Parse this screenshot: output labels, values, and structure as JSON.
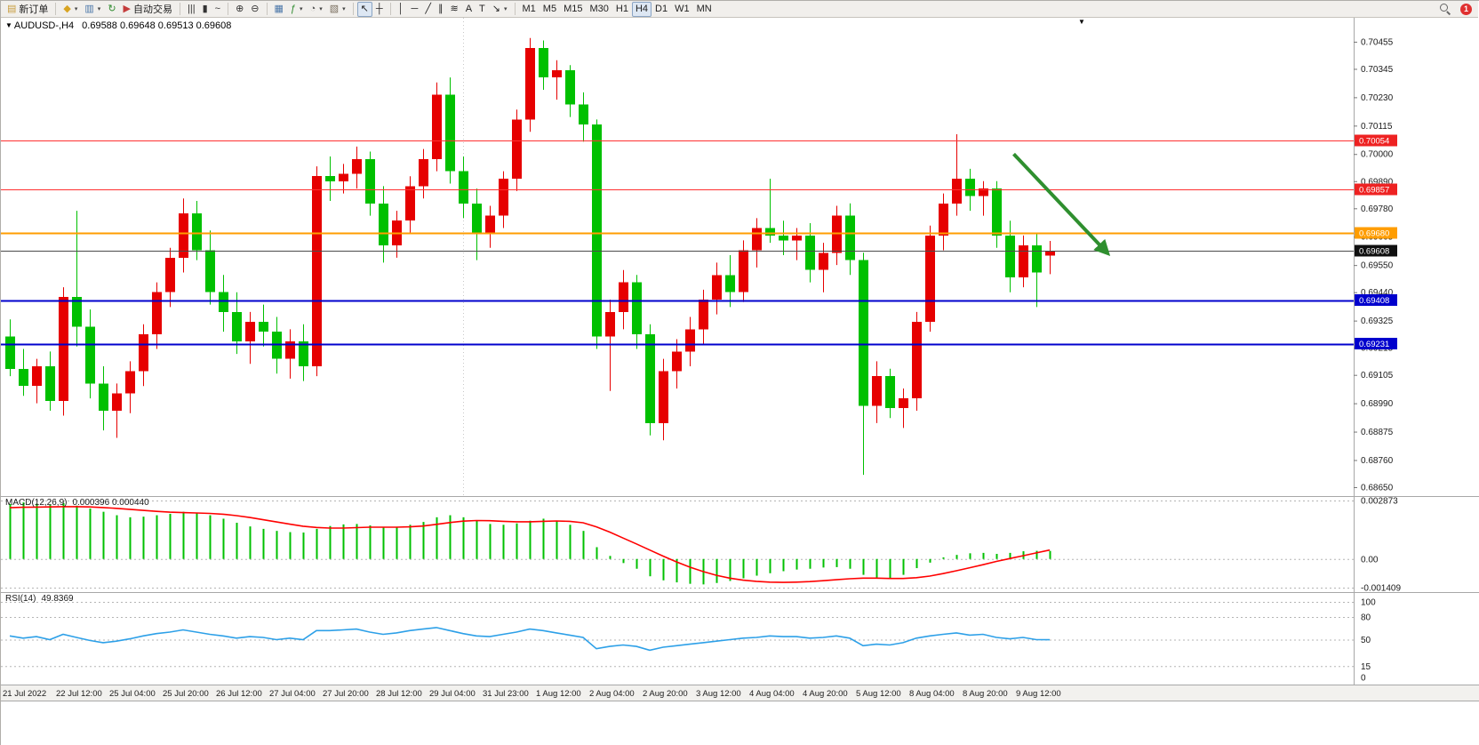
{
  "icons": {
    "symbol_caret": "▼",
    "shift_marker": "▼"
  },
  "toolbar": {
    "items": [
      {
        "kind": "button",
        "name": "new-order-button",
        "icon": "new-order-icon",
        "glyph": "▤",
        "color": "#c89c3c",
        "label": "新订单"
      },
      {
        "kind": "sep"
      },
      {
        "kind": "button",
        "name": "profiles-button",
        "icon": "profiles-icon",
        "glyph": "◆",
        "color": "#d8a422",
        "caret": true
      },
      {
        "kind": "button",
        "name": "charts-window-button",
        "icon": "chart-window-icon",
        "glyph": "▥",
        "color": "#4a76a8",
        "caret": true
      },
      {
        "kind": "button",
        "name": "refresh-button",
        "icon": "refresh-icon",
        "glyph": "↻",
        "color": "#2e8b2e"
      },
      {
        "kind": "button",
        "name": "autotrading-button",
        "icon": "autotrading-icon",
        "glyph": "▶",
        "color": "#c43c3c",
        "label": "自动交易"
      },
      {
        "kind": "sep"
      },
      {
        "kind": "button",
        "name": "bars-chart-button",
        "icon": "ohlc-bars-icon",
        "glyph": "|||",
        "color": "#333"
      },
      {
        "kind": "button",
        "name": "candles-chart-button",
        "icon": "candlestick-icon",
        "glyph": "▮",
        "color": "#333"
      },
      {
        "kind": "button",
        "name": "line-chart-button",
        "icon": "line-chart-icon",
        "glyph": "~",
        "color": "#333"
      },
      {
        "kind": "sep"
      },
      {
        "kind": "button",
        "name": "zoom-in-button",
        "icon": "zoom-in-icon",
        "glyph": "⊕",
        "color": "#333"
      },
      {
        "kind": "button",
        "name": "zoom-out-button",
        "icon": "zoom-out-icon",
        "glyph": "⊖",
        "color": "#333"
      },
      {
        "kind": "sep"
      },
      {
        "kind": "button",
        "name": "tile-windows-button",
        "icon": "tile-windows-icon",
        "glyph": "▦",
        "color": "#4a76a8"
      },
      {
        "kind": "button",
        "name": "indicators-button",
        "icon": "indicators-icon",
        "glyph": "ƒ",
        "color": "#2e8b2e",
        "caret": true
      },
      {
        "kind": "button",
        "name": "periods-button",
        "icon": "clock-icon",
        "glyph": "◔",
        "color": "#555",
        "caret": true
      },
      {
        "kind": "button",
        "name": "templates-button",
        "icon": "template-icon",
        "glyph": "▧",
        "color": "#7a6f5f",
        "caret": true
      },
      {
        "kind": "sep"
      },
      {
        "kind": "button",
        "name": "cursor-button",
        "icon": "cursor-icon",
        "glyph": "↖",
        "color": "#222",
        "active": true
      },
      {
        "kind": "button",
        "name": "crosshair-button",
        "icon": "crosshair-icon",
        "glyph": "┼",
        "color": "#222"
      },
      {
        "kind": "sep"
      },
      {
        "kind": "button",
        "name": "vertical-line-button",
        "icon": "vertical-line-icon",
        "glyph": "│",
        "color": "#222"
      },
      {
        "kind": "button",
        "name": "horizontal-line-button",
        "icon": "horizontal-line-icon",
        "glyph": "─",
        "color": "#222"
      },
      {
        "kind": "button",
        "name": "trendline-button",
        "icon": "trendline-icon",
        "glyph": "╱",
        "color": "#222"
      },
      {
        "kind": "button",
        "name": "channel-button",
        "icon": "channel-icon",
        "glyph": "∥",
        "color": "#222"
      },
      {
        "kind": "button",
        "name": "fibonacci-button",
        "icon": "fibonacci-icon",
        "glyph": "≋",
        "color": "#222"
      },
      {
        "kind": "button",
        "name": "text-button",
        "icon": "text-icon",
        "glyph": "A",
        "color": "#222"
      },
      {
        "kind": "button",
        "name": "text-label-button",
        "icon": "text-label-icon",
        "glyph": "T",
        "color": "#222"
      },
      {
        "kind": "button",
        "name": "arrows-button",
        "icon": "arrow-shapes-icon",
        "glyph": "↘",
        "color": "#222",
        "caret": true
      },
      {
        "kind": "sep"
      },
      {
        "kind": "tf",
        "name": "timeframe-m1-button",
        "label": "M1"
      },
      {
        "kind": "tf",
        "name": "timeframe-m5-button",
        "label": "M5"
      },
      {
        "kind": "tf",
        "name": "timeframe-m15-button",
        "label": "M15"
      },
      {
        "kind": "tf",
        "name": "timeframe-m30-button",
        "label": "M30"
      },
      {
        "kind": "tf",
        "name": "timeframe-h1-button",
        "label": "H1"
      },
      {
        "kind": "tf",
        "name": "timeframe-h4-button",
        "label": "H4",
        "active": true
      },
      {
        "kind": "tf",
        "name": "timeframe-d1-button",
        "label": "D1"
      },
      {
        "kind": "tf",
        "name": "timeframe-w1-button",
        "label": "W1"
      },
      {
        "kind": "tf",
        "name": "timeframe-mn-button",
        "label": "MN"
      },
      {
        "kind": "spacer"
      },
      {
        "kind": "search",
        "name": "search-button"
      },
      {
        "kind": "badge",
        "name": "notifications-badge",
        "label": "1"
      }
    ]
  },
  "chart_header": {
    "symbol_period": "AUDUSD-,H4",
    "ohlc": "0.69588 0.69648 0.69513 0.69608"
  },
  "chart_data": {
    "type": "candlestick",
    "symbol": "AUDUSD-",
    "period": "H4",
    "colors": {
      "up": "#e60000",
      "down": "#00c000"
    },
    "price_axis": {
      "range": [
        0.68614,
        0.70552
      ],
      "ticks": [
        "0.70455",
        "0.70345",
        "0.70230",
        "0.70115",
        "0.70000",
        "0.69890",
        "0.69780",
        "0.69665",
        "0.69550",
        "0.69440",
        "0.69325",
        "0.69215",
        "0.69105",
        "0.68990",
        "0.68875",
        "0.68760",
        "0.68650"
      ]
    },
    "time_labels": [
      "21 Jul 2022",
      "22 Jul 12:00",
      "25 Jul 04:00",
      "25 Jul 20:00",
      "26 Jul 12:00",
      "27 Jul 04:00",
      "27 Jul 20:00",
      "28 Jul 12:00",
      "29 Jul 04:00",
      "31 Jul 23:00",
      "1 Aug 12:00",
      "2 Aug 04:00",
      "2 Aug 20:00",
      "3 Aug 12:00",
      "4 Aug 04:00",
      "4 Aug 20:00",
      "5 Aug 12:00",
      "8 Aug 04:00",
      "8 Aug 20:00",
      "9 Aug 12:00"
    ],
    "bars_per_label": 4,
    "separator_bar_index": 34,
    "candles": [
      [
        0.6926,
        0.6933,
        0.691,
        0.6913
      ],
      [
        0.6913,
        0.6921,
        0.6902,
        0.6906
      ],
      [
        0.6906,
        0.6917,
        0.6899,
        0.6914
      ],
      [
        0.6914,
        0.692,
        0.6896,
        0.69
      ],
      [
        0.69,
        0.6946,
        0.6894,
        0.6942
      ],
      [
        0.6942,
        0.6977,
        0.6922,
        0.693
      ],
      [
        0.693,
        0.6937,
        0.6901,
        0.6907
      ],
      [
        0.6907,
        0.6914,
        0.6888,
        0.6896
      ],
      [
        0.6896,
        0.6907,
        0.6885,
        0.6903
      ],
      [
        0.6903,
        0.6916,
        0.6895,
        0.6912
      ],
      [
        0.6912,
        0.6931,
        0.6906,
        0.6927
      ],
      [
        0.6927,
        0.6948,
        0.6921,
        0.6944
      ],
      [
        0.6944,
        0.6962,
        0.6938,
        0.6958
      ],
      [
        0.6958,
        0.6982,
        0.6952,
        0.6976
      ],
      [
        0.6976,
        0.6981,
        0.6957,
        0.6961
      ],
      [
        0.6961,
        0.6969,
        0.6939,
        0.6944
      ],
      [
        0.6944,
        0.6951,
        0.6928,
        0.6936
      ],
      [
        0.6936,
        0.6944,
        0.6919,
        0.6924
      ],
      [
        0.6924,
        0.6936,
        0.6915,
        0.6932
      ],
      [
        0.6932,
        0.6939,
        0.6922,
        0.6928
      ],
      [
        0.6928,
        0.6934,
        0.6911,
        0.6917
      ],
      [
        0.6917,
        0.6929,
        0.6909,
        0.6924
      ],
      [
        0.6924,
        0.6931,
        0.6908,
        0.6914
      ],
      [
        0.6914,
        0.6995,
        0.691,
        0.6991
      ],
      [
        0.6991,
        0.6999,
        0.6981,
        0.6989
      ],
      [
        0.6989,
        0.6996,
        0.6984,
        0.6992
      ],
      [
        0.6992,
        0.7003,
        0.6986,
        0.6998
      ],
      [
        0.6998,
        0.7001,
        0.6975,
        0.698
      ],
      [
        0.698,
        0.6987,
        0.6956,
        0.6963
      ],
      [
        0.6963,
        0.6977,
        0.6958,
        0.6973
      ],
      [
        0.6973,
        0.6991,
        0.6968,
        0.6987
      ],
      [
        0.6987,
        0.7002,
        0.6982,
        0.6998
      ],
      [
        0.6998,
        0.7029,
        0.6993,
        0.7024
      ],
      [
        0.7024,
        0.7031,
        0.6988,
        0.6993
      ],
      [
        0.6993,
        0.6999,
        0.6974,
        0.698
      ],
      [
        0.698,
        0.6986,
        0.6957,
        0.6968
      ],
      [
        0.6968,
        0.6979,
        0.6962,
        0.6975
      ],
      [
        0.6975,
        0.6993,
        0.697,
        0.699
      ],
      [
        0.699,
        0.7018,
        0.6985,
        0.7014
      ],
      [
        0.7014,
        0.7047,
        0.7009,
        0.7043
      ],
      [
        0.7043,
        0.7046,
        0.7026,
        0.7031
      ],
      [
        0.7031,
        0.7038,
        0.7022,
        0.7034
      ],
      [
        0.7034,
        0.7036,
        0.7015,
        0.702
      ],
      [
        0.702,
        0.7025,
        0.7005,
        0.7012
      ],
      [
        0.7012,
        0.7014,
        0.6921,
        0.6926
      ],
      [
        0.6926,
        0.6941,
        0.6904,
        0.6936
      ],
      [
        0.6936,
        0.6953,
        0.6929,
        0.6948
      ],
      [
        0.6948,
        0.6951,
        0.6921,
        0.6927
      ],
      [
        0.6927,
        0.6931,
        0.6886,
        0.6891
      ],
      [
        0.6891,
        0.6917,
        0.6884,
        0.6912
      ],
      [
        0.6912,
        0.6925,
        0.6905,
        0.692
      ],
      [
        0.692,
        0.6934,
        0.6914,
        0.6929
      ],
      [
        0.6929,
        0.6945,
        0.6923,
        0.6941
      ],
      [
        0.6941,
        0.6956,
        0.6935,
        0.6951
      ],
      [
        0.6951,
        0.6959,
        0.6938,
        0.6944
      ],
      [
        0.6944,
        0.6965,
        0.694,
        0.6961
      ],
      [
        0.6961,
        0.6974,
        0.6954,
        0.697
      ],
      [
        0.697,
        0.699,
        0.6964,
        0.6967
      ],
      [
        0.6967,
        0.6973,
        0.6959,
        0.6965
      ],
      [
        0.6965,
        0.697,
        0.6957,
        0.6967
      ],
      [
        0.6967,
        0.6972,
        0.6948,
        0.6953
      ],
      [
        0.6953,
        0.6964,
        0.6944,
        0.696
      ],
      [
        0.696,
        0.6979,
        0.6955,
        0.6975
      ],
      [
        0.6975,
        0.698,
        0.6951,
        0.6957
      ],
      [
        0.6957,
        0.696,
        0.687,
        0.6898
      ],
      [
        0.6898,
        0.6916,
        0.6891,
        0.691
      ],
      [
        0.691,
        0.6913,
        0.6893,
        0.6897
      ],
      [
        0.6897,
        0.6905,
        0.6889,
        0.6901
      ],
      [
        0.6901,
        0.6936,
        0.6896,
        0.6932
      ],
      [
        0.6932,
        0.6971,
        0.6928,
        0.6967
      ],
      [
        0.6967,
        0.6984,
        0.6961,
        0.698
      ],
      [
        0.698,
        0.7008,
        0.6975,
        0.699
      ],
      [
        0.699,
        0.6994,
        0.6977,
        0.6983
      ],
      [
        0.6983,
        0.6989,
        0.6975,
        0.6986
      ],
      [
        0.6986,
        0.6989,
        0.6962,
        0.6967
      ],
      [
        0.6967,
        0.6973,
        0.6944,
        0.695
      ],
      [
        0.695,
        0.6967,
        0.6946,
        0.6963
      ],
      [
        0.6963,
        0.6968,
        0.6938,
        0.6952
      ],
      [
        0.69588,
        0.69648,
        0.69513,
        0.69608
      ]
    ],
    "horizontal_lines": [
      {
        "price": 0.70054,
        "label": "0.70054",
        "color": "#ff3030",
        "label_bg": "#ee2222",
        "width": 1
      },
      {
        "price": 0.69857,
        "label": "0.69857",
        "color": "#ff3030",
        "label_bg": "#ee2222",
        "width": 1
      },
      {
        "price": 0.6968,
        "label": "0.69680",
        "color": "#ff9d00",
        "label_bg": "#ff9d00",
        "width": 2
      },
      {
        "price": 0.69608,
        "label": "0.69608",
        "color": "#4a4a4a",
        "label_bg": "#101010",
        "width": 1,
        "role": "current-price"
      },
      {
        "price": 0.69408,
        "label": "0.69408",
        "color": "#0000cd",
        "label_bg": "#0000cd",
        "width": 2
      },
      {
        "price": 0.69231,
        "label": "0.69231",
        "color": "#0000cd",
        "label_bg": "#0000cd",
        "width": 2
      }
    ],
    "trend_arrow": {
      "from_bar": 75.3,
      "from_price": 0.7,
      "to_bar": 82.3,
      "to_price": 0.696,
      "color": "#2f8f2f",
      "width": 4
    },
    "macd": {
      "label": "MACD(12,26,9)",
      "values": "0.000396 0.000440",
      "range": [
        -0.001409,
        0.002873
      ],
      "scale_labels": [
        {
          "text": "0.002873",
          "value": 0.002873
        },
        {
          "text": "0.00",
          "value": 0
        },
        {
          "text": "-0.001409",
          "value": -0.001409
        }
      ],
      "colors": {
        "histogram": "#00c000",
        "signal": "#ff0000"
      },
      "histogram": [
        0.0027,
        0.00278,
        0.00272,
        0.00268,
        0.00275,
        0.00262,
        0.00248,
        0.00232,
        0.00215,
        0.00205,
        0.00208,
        0.00215,
        0.00222,
        0.00232,
        0.00228,
        0.00215,
        0.00198,
        0.00178,
        0.0016,
        0.00148,
        0.00138,
        0.00132,
        0.0013,
        0.00148,
        0.00162,
        0.0017,
        0.00172,
        0.00165,
        0.00155,
        0.00158,
        0.00168,
        0.00182,
        0.00205,
        0.00215,
        0.00205,
        0.00188,
        0.00172,
        0.00168,
        0.00175,
        0.00188,
        0.00198,
        0.00188,
        0.00168,
        0.00138,
        0.00058,
        0.00015,
        -0.0002,
        -0.00048,
        -0.00085,
        -0.00105,
        -0.00115,
        -0.00122,
        -0.00125,
        -0.00118,
        -0.00108,
        -0.00095,
        -0.00082,
        -0.0007,
        -0.0006,
        -0.00052,
        -0.00048,
        -0.00042,
        -0.0004,
        -0.00048,
        -0.00078,
        -0.00092,
        -0.00095,
        -0.00078,
        -0.00045,
        -0.00018,
        8e-05,
        0.0002,
        0.00028,
        0.0003,
        0.00025,
        0.0003,
        0.00038,
        0.0004,
        0.000396
      ],
      "signal": [
        0.00252,
        0.00254,
        0.00255,
        0.00256,
        0.00257,
        0.00257,
        0.00256,
        0.00253,
        0.00249,
        0.00244,
        0.00239,
        0.00234,
        0.0023,
        0.00228,
        0.00226,
        0.00224,
        0.0022,
        0.00213,
        0.00204,
        0.00193,
        0.00182,
        0.00171,
        0.00161,
        0.00155,
        0.00152,
        0.00152,
        0.00154,
        0.00156,
        0.00156,
        0.00156,
        0.00158,
        0.00162,
        0.0017,
        0.00179,
        0.00186,
        0.00189,
        0.00188,
        0.00185,
        0.00183,
        0.00183,
        0.00185,
        0.00187,
        0.00185,
        0.00178,
        0.00158,
        0.00132,
        0.00103,
        0.00074,
        0.00044,
        0.00014,
        -0.00014,
        -0.0004,
        -0.00062,
        -0.0008,
        -0.00094,
        -0.00104,
        -0.0011,
        -0.00114,
        -0.00115,
        -0.00114,
        -0.00111,
        -0.00107,
        -0.00102,
        -0.00097,
        -0.00094,
        -0.00094,
        -0.00096,
        -0.00096,
        -0.00092,
        -0.00084,
        -0.00072,
        -0.00058,
        -0.00043,
        -0.00028,
        -0.00012,
        2e-05,
        0.00016,
        0.0003,
        0.00044
      ]
    },
    "rsi": {
      "label": "RSI(14)",
      "value": "49.8369",
      "range": [
        0,
        100
      ],
      "color": "#2da0e8",
      "levels": [
        {
          "text": "100",
          "value": 100
        },
        {
          "text": "80",
          "value": 80
        },
        {
          "text": "50",
          "value": 50
        },
        {
          "text": "15",
          "value": 15
        },
        {
          "text": "0",
          "value": 0
        }
      ],
      "values": [
        55,
        52,
        54,
        50,
        57,
        53,
        49,
        46,
        48,
        51,
        55,
        58,
        60,
        63,
        60,
        57,
        55,
        52,
        54,
        53,
        50,
        52,
        50,
        62,
        62,
        63,
        64,
        60,
        57,
        59,
        62,
        64,
        66,
        62,
        58,
        55,
        54,
        57,
        60,
        64,
        62,
        59,
        56,
        53,
        38,
        41,
        43,
        41,
        36,
        40,
        42,
        44,
        46,
        48,
        50,
        52,
        53,
        55,
        54,
        54,
        52,
        53,
        55,
        52,
        42,
        44,
        43,
        46,
        52,
        55,
        57,
        59,
        56,
        57,
        53,
        51,
        53,
        50,
        49.84
      ]
    }
  }
}
